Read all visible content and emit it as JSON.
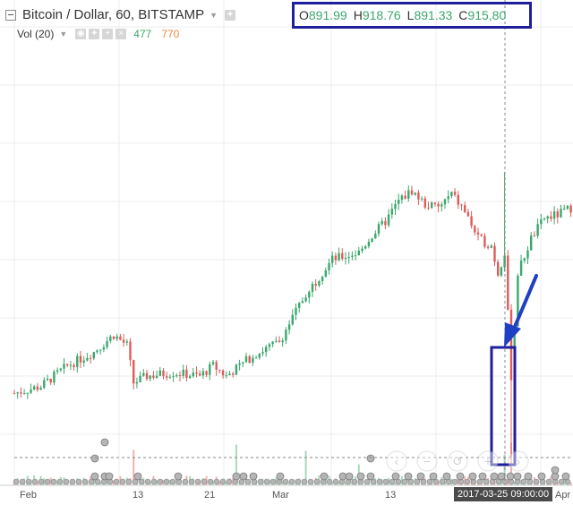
{
  "header": {
    "symbol_title": "Bitcoin / Dollar, 60, BITSTAMP",
    "ohlc": {
      "o_label": "O",
      "o_value": "891.99",
      "h_label": "H",
      "h_value": "918.76",
      "l_label": "L",
      "l_value": "891.33",
      "c_label": "C",
      "c_value": "915,80"
    },
    "volume": {
      "label": "Vol (20)",
      "value_up": "477",
      "value_down": "770"
    }
  },
  "x_axis_labels": [
    "Feb",
    "13",
    "21",
    "Mar",
    "13",
    "Apr"
  ],
  "crosshair_date": "2017-03-25 09:00:00",
  "nav_buttons": [
    "scroll-left",
    "zoom-out",
    "reset",
    "zoom-in",
    "scroll-right"
  ],
  "colors": {
    "up_candle": "#3aa76d",
    "down_candle": "#e05a5a",
    "highlight_border": "#1f1f9e",
    "arrow": "#1f3fc4",
    "grid": "#ececec"
  },
  "chart_data": {
    "type": "candlestick",
    "symbol": "Bitcoin / Dollar",
    "timeframe": "60",
    "exchange": "BITSTAMP",
    "x_ticks": [
      "Feb",
      "13",
      "21",
      "Mar",
      "13",
      "Apr"
    ],
    "key_points": [
      {
        "date": "2017-02-01",
        "approx_close": 975
      },
      {
        "date": "2017-02-08",
        "approx_close": 1060
      },
      {
        "date": "2017-02-10",
        "approx_close": 990
      },
      {
        "date": "2017-02-21",
        "approx_close": 1120
      },
      {
        "date": "2017-03-03",
        "approx_close": 1270
      },
      {
        "date": "2017-03-10",
        "approx_close": 1000
      },
      {
        "date": "2017-03-14",
        "approx_close": 1250
      },
      {
        "date": "2017-03-18",
        "approx_close": 1000
      },
      {
        "date": "2017-03-25",
        "approx_close": 915.8
      }
    ],
    "selected_candle": {
      "date": "2017-03-25 09:00:00",
      "open": 891.99,
      "high": 918.76,
      "low": 891.33,
      "close": 915.8
    },
    "volume_series": {
      "name": "Vol (20)",
      "last_up": 477,
      "last_down": 770
    }
  }
}
